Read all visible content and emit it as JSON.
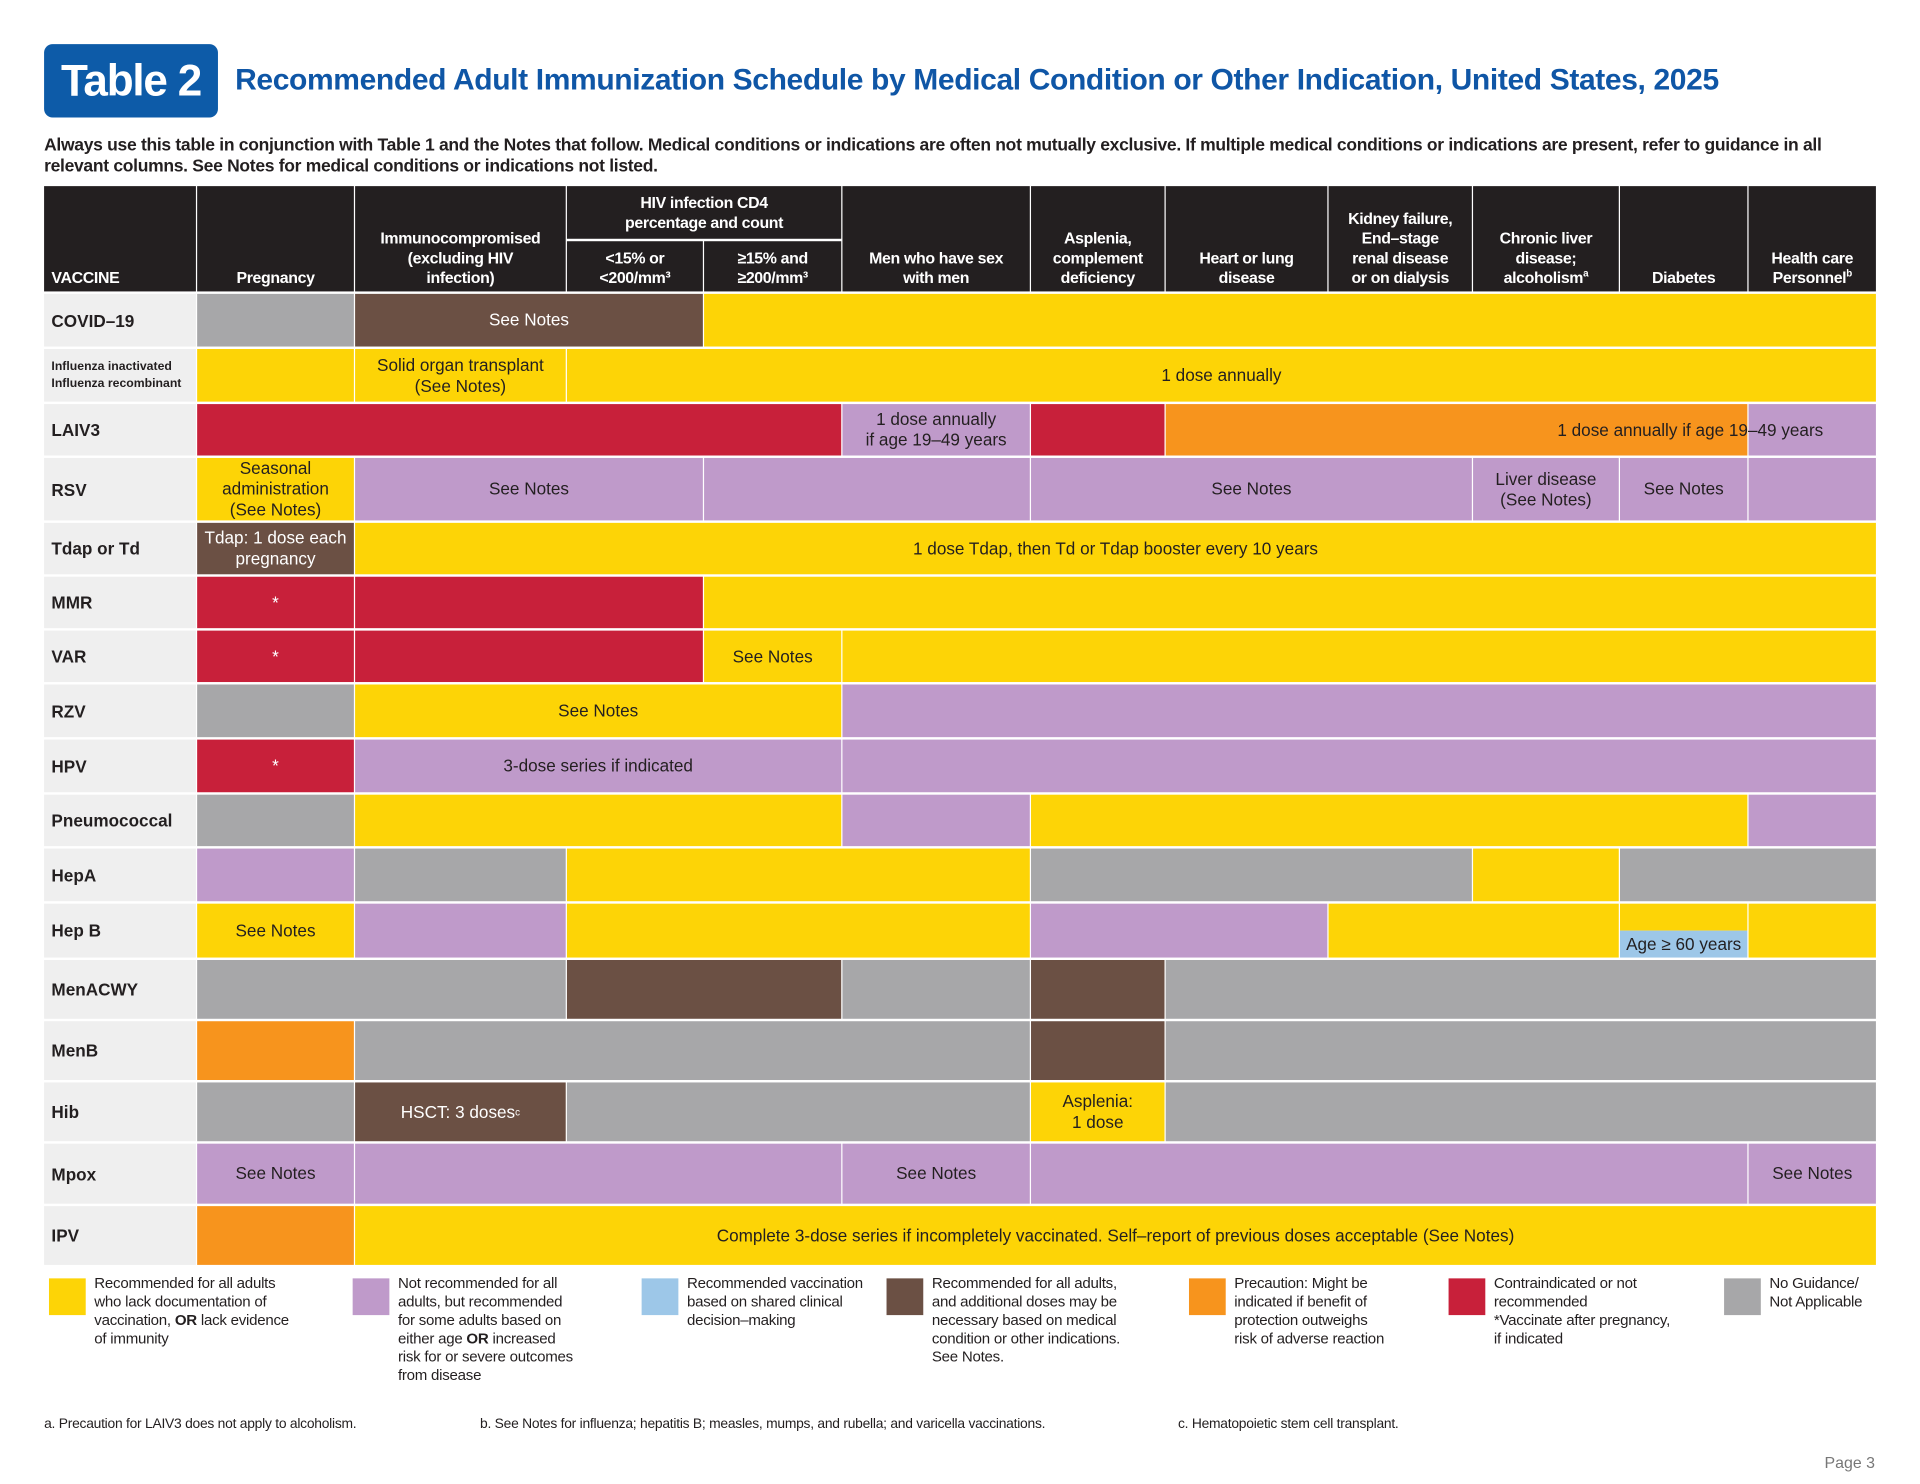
{
  "header": {
    "badge": "Table 2",
    "title": "Recommended Adult Immunization Schedule by Medical Condition or Other Indication, United States, 2025",
    "subtitle": "Always use this table in conjunction with Table 1 and the Notes that follow. Medical conditions or indications are often not mutually exclusive. If multiple medical conditions or indications are present, refer to guidance in all relevant columns. See Notes for medical conditions or indications not listed."
  },
  "colors": {
    "yellow": "#FDD406",
    "purple": "#BF9ACA",
    "blue": "#9DC7E8",
    "brown": "#6B5044",
    "orange": "#F7941D",
    "red": "#C8203A",
    "grey": "#A7A7A9",
    "header": "#231F20",
    "title_blue": "#0F56A6"
  },
  "columns": {
    "vaccine": "VACCINE",
    "pregnancy": "Pregnancy",
    "immuno": "Immunocompromised\n(excluding HIV\ninfection)",
    "hiv_group": "HIV infection CD4\npercentage and count",
    "hiv_low": "<15% or\n<200/mm³",
    "hiv_high": "≥15% and\n≥200/mm³",
    "msm": "Men who have sex\nwith men",
    "asplenia": "Asplenia,\ncomplement\ndeficiency",
    "heart": "Heart or lung\ndisease",
    "kidney": "Kidney failure,\nEnd–stage\nrenal disease\nor on dialysis",
    "liver": "Chronic liver\ndisease;\nalcoholism",
    "liver_sup": "a",
    "diabetes": "Diabetes",
    "hcp": "Health care\nPersonnel",
    "hcp_sup": "b"
  },
  "rows": [
    {
      "vaccine": "COVID–19",
      "cells": [
        {
          "span": 1,
          "color": "grey"
        },
        {
          "span": 2,
          "color": "brown",
          "text": "See Notes"
        },
        {
          "span": 8,
          "color": "yellow"
        }
      ]
    },
    {
      "vaccine": "Influenza inactivated\nInfluenza recombinant",
      "small": true,
      "cells": [
        {
          "span": 1,
          "color": "yellow"
        },
        {
          "span": 1,
          "color": "yellow",
          "text": "Solid organ transplant\n(See Notes)"
        },
        {
          "span": 9,
          "color": "yellow",
          "text": "1 dose annually"
        }
      ]
    },
    {
      "vaccine": "LAIV3",
      "cells": [
        {
          "span": 4,
          "color": "red"
        },
        {
          "span": 1,
          "color": "purple",
          "text": "1 dose annually\nif age 19–49 years"
        },
        {
          "span": 1,
          "color": "red"
        },
        {
          "span": 4,
          "color": "orange",
          "text": "1 dose annually if age 19–49 years",
          "shift": true
        },
        {
          "span": 1,
          "color": "purple"
        }
      ]
    },
    {
      "vaccine": "RSV",
      "cells": [
        {
          "span": 1,
          "color": "yellow",
          "text": "Seasonal\nadministration\n(See Notes)"
        },
        {
          "span": 2,
          "color": "purple",
          "text": "See Notes"
        },
        {
          "span": 2,
          "color": "purple"
        },
        {
          "span": 3,
          "color": "purple",
          "text": "See Notes"
        },
        {
          "span": 1,
          "color": "purple",
          "text": "Liver disease\n(See Notes)"
        },
        {
          "span": 1,
          "color": "purple",
          "text": "See Notes"
        },
        {
          "span": 1,
          "color": "purple"
        }
      ]
    },
    {
      "vaccine": "Tdap or Td",
      "cells": [
        {
          "span": 1,
          "color": "brown",
          "text": "Tdap: 1 dose each\npregnancy"
        },
        {
          "span": 10,
          "color": "yellow",
          "text": "1 dose Tdap, then Td or Tdap booster every 10 years"
        }
      ]
    },
    {
      "vaccine": "MMR",
      "cells": [
        {
          "span": 1,
          "color": "red",
          "text": "*"
        },
        {
          "span": 2,
          "color": "red"
        },
        {
          "span": 8,
          "color": "yellow"
        }
      ]
    },
    {
      "vaccine": "VAR",
      "cells": [
        {
          "span": 1,
          "color": "red",
          "text": "*"
        },
        {
          "span": 2,
          "color": "red"
        },
        {
          "span": 1,
          "color": "yellow",
          "text": "See Notes"
        },
        {
          "span": 7,
          "color": "yellow"
        }
      ]
    },
    {
      "vaccine": "RZV",
      "cells": [
        {
          "span": 1,
          "color": "grey"
        },
        {
          "span": 3,
          "color": "yellow",
          "text": "See Notes"
        },
        {
          "span": 7,
          "color": "purple"
        }
      ]
    },
    {
      "vaccine": "HPV",
      "cells": [
        {
          "span": 1,
          "color": "red",
          "text": "*"
        },
        {
          "span": 3,
          "color": "purple",
          "text": "3-dose series if indicated"
        },
        {
          "span": 7,
          "color": "purple"
        }
      ]
    },
    {
      "vaccine": "Pneumococcal",
      "cells": [
        {
          "span": 1,
          "color": "grey"
        },
        {
          "span": 3,
          "color": "yellow"
        },
        {
          "span": 1,
          "color": "purple"
        },
        {
          "span": 5,
          "color": "yellow"
        },
        {
          "span": 1,
          "color": "purple"
        }
      ]
    },
    {
      "vaccine": "HepA",
      "cells": [
        {
          "span": 1,
          "color": "purple"
        },
        {
          "span": 1,
          "color": "grey"
        },
        {
          "span": 3,
          "color": "yellow"
        },
        {
          "span": 3,
          "color": "grey"
        },
        {
          "span": 1,
          "color": "yellow"
        },
        {
          "span": 2,
          "color": "grey"
        }
      ]
    },
    {
      "vaccine": "Hep B",
      "cells": [
        {
          "span": 1,
          "color": "yellow",
          "text": "See Notes"
        },
        {
          "span": 1,
          "color": "purple"
        },
        {
          "span": 3,
          "color": "yellow"
        },
        {
          "span": 2,
          "color": "purple"
        },
        {
          "span": 2,
          "color": "yellow"
        },
        {
          "span": 1,
          "color": "split",
          "text": "Age ≥ 60 years"
        },
        {
          "span": 1,
          "color": "yellow"
        }
      ]
    },
    {
      "vaccine": "MenACWY",
      "cells": [
        {
          "span": 2,
          "color": "grey"
        },
        {
          "span": 2,
          "color": "brown"
        },
        {
          "span": 1,
          "color": "grey"
        },
        {
          "span": 1,
          "color": "brown"
        },
        {
          "span": 5,
          "color": "grey"
        }
      ]
    },
    {
      "vaccine": "MenB",
      "cells": [
        {
          "span": 1,
          "color": "orange"
        },
        {
          "span": 4,
          "color": "grey"
        },
        {
          "span": 1,
          "color": "brown"
        },
        {
          "span": 5,
          "color": "grey"
        }
      ]
    },
    {
      "vaccine": "Hib",
      "cells": [
        {
          "span": 1,
          "color": "grey"
        },
        {
          "span": 1,
          "color": "brown",
          "text": "HSCT: 3 doses",
          "sup": "c"
        },
        {
          "span": 3,
          "color": "grey"
        },
        {
          "span": 1,
          "color": "yellow",
          "text": "Asplenia:\n1 dose"
        },
        {
          "span": 5,
          "color": "grey"
        }
      ]
    },
    {
      "vaccine": "Mpox",
      "cells": [
        {
          "span": 1,
          "color": "purple",
          "text": "See Notes"
        },
        {
          "span": 3,
          "color": "purple"
        },
        {
          "span": 1,
          "color": "purple",
          "text": "See Notes"
        },
        {
          "span": 5,
          "color": "purple"
        },
        {
          "span": 1,
          "color": "purple",
          "text": "See Notes"
        }
      ]
    },
    {
      "vaccine": "IPV",
      "cells": [
        {
          "span": 1,
          "color": "orange"
        },
        {
          "span": 10,
          "color": "yellow",
          "text": "Complete 3-dose series if incompletely vaccinated. Self–report of previous doses acceptable (See Notes)"
        }
      ]
    }
  ],
  "legend": [
    {
      "color": "yellow",
      "text": "Recommended for all adults\nwho lack documentation of\nvaccination, OR lack evidence\nof immunity"
    },
    {
      "color": "purple",
      "text": "Not recommended for all\nadults, but recommended\nfor some adults based on\neither age OR increased\nrisk for or severe outcomes\nfrom disease"
    },
    {
      "color": "blue",
      "text": "Recommended vaccination\nbased on shared clinical\ndecision–making"
    },
    {
      "color": "brown",
      "text": "Recommended for all adults,\nand additional doses may be\nnecessary based on medical\ncondition or other indications.\nSee Notes."
    },
    {
      "color": "orange",
      "text": "Precaution: Might be\nindicated if benefit of\nprotection outweighs\nrisk of adverse reaction"
    },
    {
      "color": "red",
      "text": "Contraindicated or not\nrecommended\n*Vaccinate after pregnancy,\nif indicated"
    },
    {
      "color": "grey",
      "text": "No Guidance/\nNot Applicable"
    }
  ],
  "footnotes": [
    "a. Precaution for LAIV3 does not apply to alcoholism.",
    "b. See Notes for influenza; hepatitis B; measles, mumps, and rubella; and varicella vaccinations.",
    "c. Hematopoietic stem cell transplant."
  ],
  "page": "Page 3"
}
